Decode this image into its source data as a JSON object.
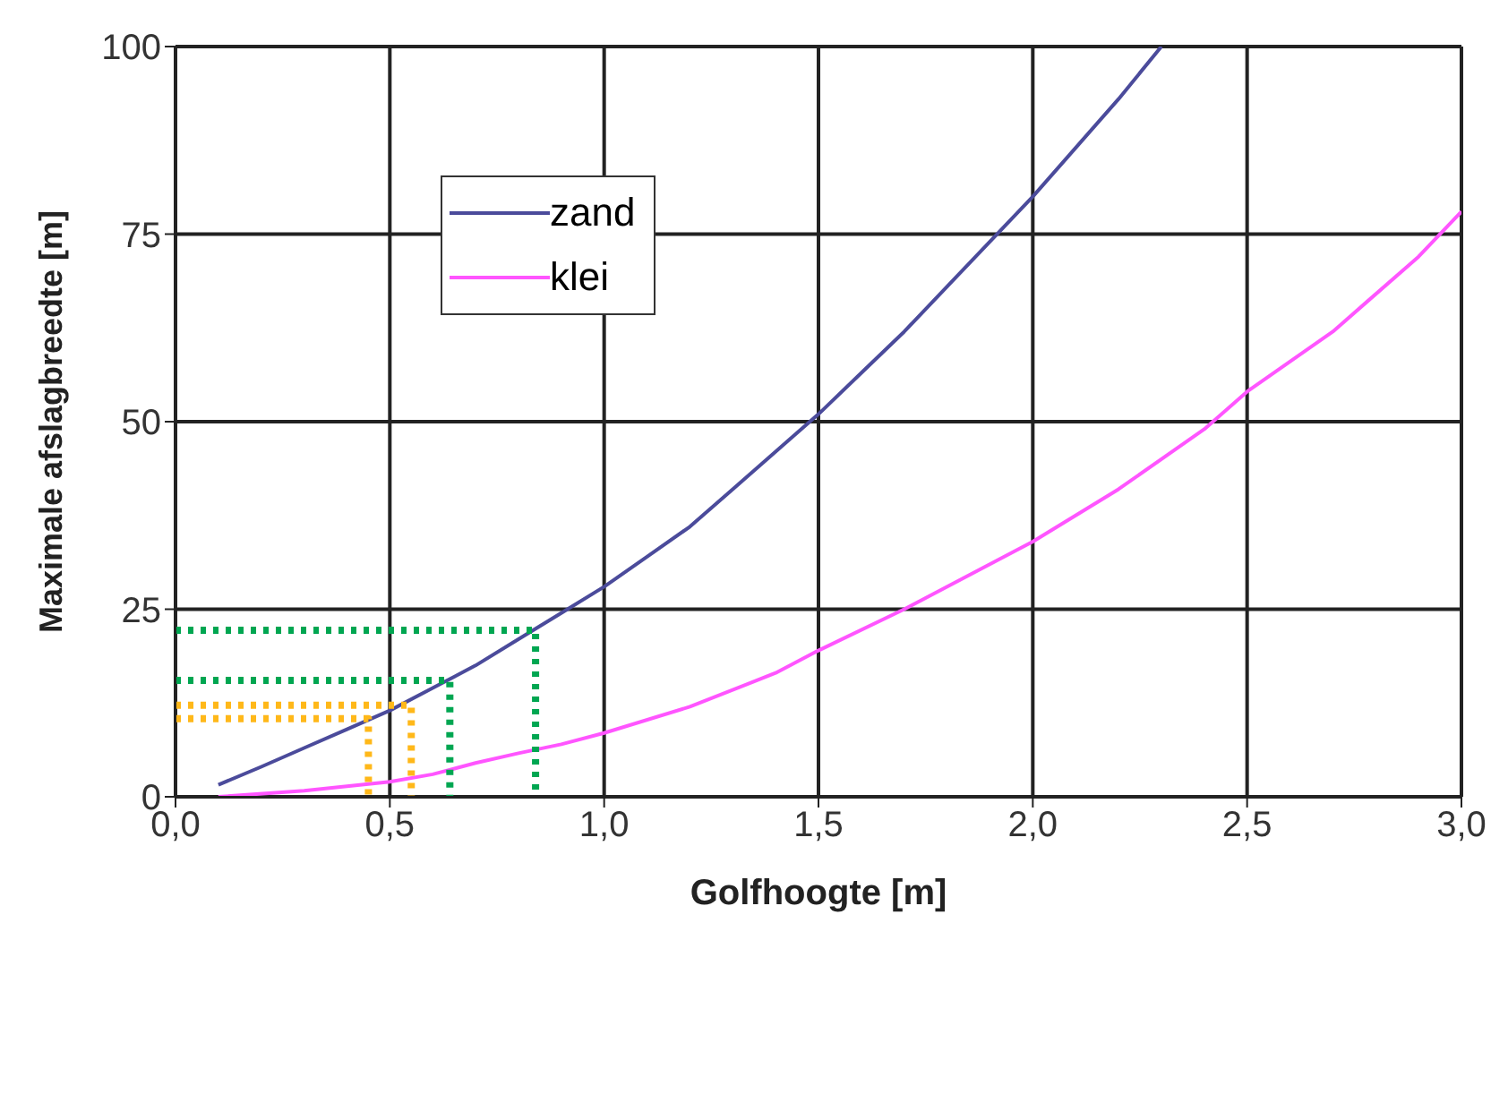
{
  "chart_data": {
    "type": "line",
    "xlabel": "Golfhoogte [m]",
    "ylabel": "Maximale afslagbreedte [m]",
    "xlim": [
      0,
      3
    ],
    "ylim": [
      0,
      100
    ],
    "xticks": [
      {
        "value": 0,
        "label": "0,0"
      },
      {
        "value": 0.5,
        "label": "0,5"
      },
      {
        "value": 1,
        "label": "1,0"
      },
      {
        "value": 1.5,
        "label": "1,5"
      },
      {
        "value": 2,
        "label": "2,0"
      },
      {
        "value": 2.5,
        "label": "2,5"
      },
      {
        "value": 3,
        "label": "3,0"
      }
    ],
    "yticks": [
      0,
      25,
      50,
      75,
      100
    ],
    "grid": true,
    "legend": "top left",
    "marker": "none",
    "series": [
      {
        "name": "zand",
        "color": "#4b4b9b",
        "line_style": "solid",
        "x": [
          0.1,
          0.2,
          0.3,
          0.4,
          0.5,
          0.6,
          0.7,
          0.8,
          0.9,
          1.0,
          1.1,
          1.2,
          1.3,
          1.4,
          1.5,
          1.6,
          1.7,
          1.8,
          1.9,
          2.0,
          2.1,
          2.2,
          2.3
        ],
        "values": [
          1.6,
          4,
          6.5,
          9,
          11.5,
          14.5,
          17.5,
          21,
          24.5,
          28,
          32,
          36,
          41,
          46,
          51,
          56.5,
          62,
          68,
          74,
          80,
          86.5,
          93,
          100
        ]
      },
      {
        "name": "klei",
        "color": "#ff55ff",
        "line_style": "solid",
        "x": [
          0.1,
          0.3,
          0.5,
          0.6,
          0.7,
          0.8,
          0.9,
          1.0,
          1.2,
          1.4,
          1.5,
          1.7,
          2.0,
          2.2,
          2.4,
          2.5,
          2.7,
          2.9,
          3.0
        ],
        "values": [
          0,
          0.8,
          2,
          3,
          4.5,
          5.8,
          7,
          8.5,
          12,
          16.5,
          19.5,
          25,
          34,
          41,
          49,
          54,
          62,
          72,
          78
        ]
      },
      {
        "color": "#00a651",
        "line_style": "dotted",
        "x": [
          0,
          0.84,
          0.84
        ],
        "values": [
          22.2,
          22.2,
          0
        ]
      },
      {
        "color": "#00a651",
        "line_style": "dotted",
        "x": [
          0,
          0.64,
          0.64
        ],
        "values": [
          15.5,
          15.5,
          0
        ]
      },
      {
        "color": "#ffb819",
        "line_style": "dotted",
        "x": [
          0,
          0.55,
          0.55
        ],
        "values": [
          12.2,
          12.2,
          0
        ]
      },
      {
        "color": "#ffb819",
        "line_style": "dotted",
        "x": [
          0,
          0.45,
          0.45
        ],
        "values": [
          10.4,
          10.4,
          0
        ]
      }
    ]
  }
}
